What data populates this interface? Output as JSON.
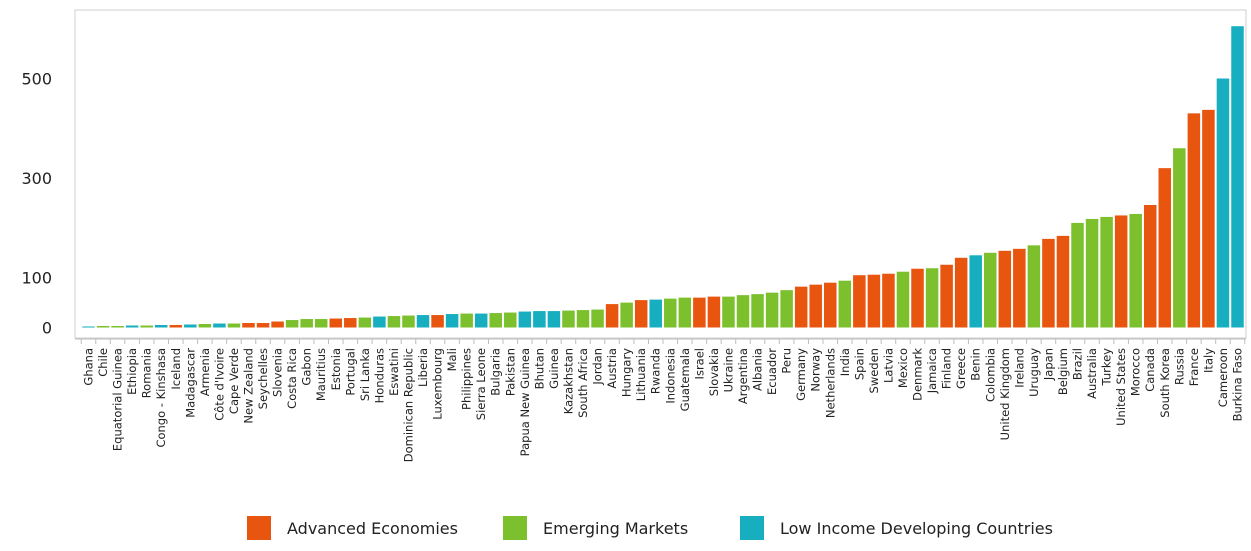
{
  "chart_data": {
    "type": "bar",
    "title": "",
    "xlabel": "",
    "ylabel": "",
    "ylim": [
      -30,
      620
    ],
    "yticks": [
      0,
      100,
      300,
      500
    ],
    "grid": false,
    "legend_position": "bottom",
    "groups": [
      {
        "name": "Advanced Economies",
        "color": "#E8550F"
      },
      {
        "name": "Emerging Markets",
        "color": "#7DC02E"
      },
      {
        "name": "Low Income Developing Countries",
        "color": "#17AFBF"
      }
    ],
    "categories": [
      "Ghana",
      "Chile",
      "Equatorial Guinea",
      "Ethiopia",
      "Romania",
      "Congo - Kinshasa",
      "Iceland",
      "Madagascar",
      "Armenia",
      "Côte d'Ivoire",
      "Cape Verde",
      "New Zealand",
      "Seychelles",
      "Slovenia",
      "Costa Rica",
      "Gabon",
      "Mauritius",
      "Estonia",
      "Portugal",
      "Sri Lanka",
      "Honduras",
      "Eswatini",
      "Dominican Republic",
      "Liberia",
      "Luxembourg",
      "Mali",
      "Philippines",
      "Sierra Leone",
      "Bulgaria",
      "Pakistan",
      "Papua New Guinea",
      "Bhutan",
      "Guinea",
      "Kazakhstan",
      "South Africa",
      "Jordan",
      "Austria",
      "Hungary",
      "Lithuania",
      "Rwanda",
      "Indonesia",
      "Guatemala",
      "Israel",
      "Slovakia",
      "Ukraine",
      "Argentina",
      "Albania",
      "Ecuador",
      "Peru",
      "Germany",
      "Norway",
      "Netherlands",
      "India",
      "Spain",
      "Sweden",
      "Latvia",
      "Mexico",
      "Denmark",
      "Jamaica",
      "Finland",
      "Greece",
      "Benin",
      "Colombia",
      "United Kingdom",
      "Ireland",
      "Uruguay",
      "Japan",
      "Belgium",
      "Brazil",
      "Australia",
      "Turkey",
      "United States",
      "Morocco",
      "Canada",
      "South Korea",
      "Russia",
      "France",
      "Italy",
      "Cameroon",
      "Burkina Faso"
    ],
    "groups_by_category": [
      2,
      1,
      1,
      2,
      1,
      2,
      0,
      2,
      1,
      2,
      1,
      0,
      0,
      0,
      1,
      1,
      1,
      0,
      0,
      1,
      2,
      1,
      1,
      2,
      0,
      2,
      1,
      2,
      1,
      1,
      2,
      2,
      2,
      1,
      1,
      1,
      0,
      1,
      0,
      2,
      1,
      1,
      0,
      0,
      1,
      1,
      1,
      1,
      1,
      0,
      0,
      0,
      1,
      0,
      0,
      0,
      1,
      0,
      1,
      0,
      0,
      2,
      1,
      0,
      0,
      1,
      0,
      0,
      1,
      1,
      1,
      0,
      1,
      0,
      0,
      1,
      0,
      0,
      2,
      2
    ],
    "values": [
      2,
      3,
      3,
      4,
      4,
      5,
      5,
      6,
      7,
      8,
      8,
      9,
      9,
      12,
      15,
      17,
      17,
      18,
      19,
      20,
      22,
      23,
      24,
      25,
      25,
      27,
      28,
      28,
      29,
      30,
      32,
      33,
      33,
      34,
      35,
      36,
      47,
      50,
      55,
      56,
      58,
      60,
      60,
      62,
      62,
      65,
      67,
      70,
      75,
      82,
      86,
      90,
      94,
      105,
      106,
      108,
      112,
      118,
      119,
      126,
      140,
      145,
      150,
      154,
      158,
      165,
      178,
      184,
      210,
      218,
      222,
      225,
      228,
      246,
      320,
      360,
      430,
      437,
      500,
      605
    ]
  }
}
